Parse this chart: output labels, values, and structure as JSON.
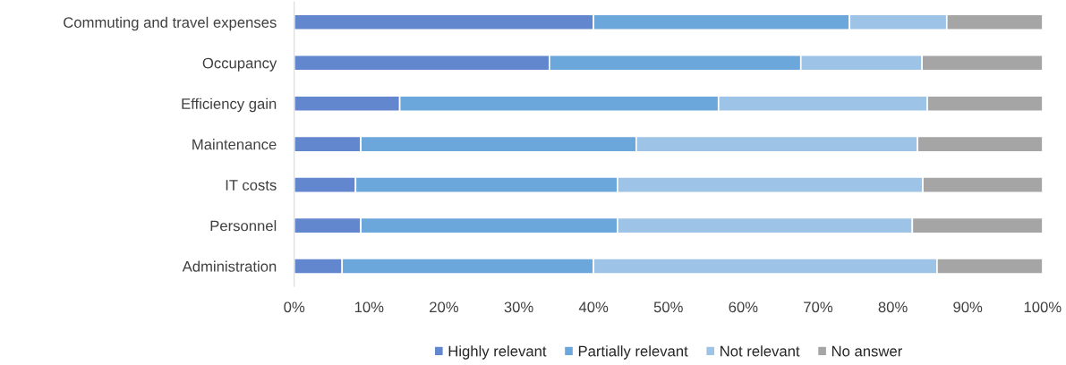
{
  "chart_data": {
    "type": "bar",
    "orientation": "horizontal",
    "stacked": true,
    "categories": [
      "Commuting and travel expenses",
      "Occupancy",
      "Efficiency gain",
      "Maintenance",
      "IT costs",
      "Personnel",
      "Administration"
    ],
    "series": [
      {
        "name": "Highly relevant",
        "color": "#6287cf",
        "values": [
          40.0,
          34.1,
          14.1,
          8.9,
          8.2,
          8.9,
          6.4
        ]
      },
      {
        "name": "Partially relevant",
        "color": "#6ca7db",
        "values": [
          34.2,
          33.6,
          42.6,
          36.8,
          35.0,
          34.3,
          33.6
        ]
      },
      {
        "name": "Not relevant",
        "color": "#9dc3e6",
        "values": [
          13.0,
          16.2,
          27.9,
          37.6,
          40.8,
          39.4,
          45.9
        ]
      },
      {
        "name": "No answer",
        "color": "#a5a5a5",
        "values": [
          12.8,
          16.1,
          15.4,
          16.7,
          16.0,
          17.4,
          14.1
        ]
      }
    ],
    "xlim": [
      0,
      100
    ],
    "xticks": [
      {
        "value": 0,
        "label": "0%"
      },
      {
        "value": 10,
        "label": "10%"
      },
      {
        "value": 20,
        "label": "20%"
      },
      {
        "value": 30,
        "label": "30%"
      },
      {
        "value": 40,
        "label": "40%"
      },
      {
        "value": 50,
        "label": "50%"
      },
      {
        "value": 60,
        "label": "60%"
      },
      {
        "value": 70,
        "label": "70%"
      },
      {
        "value": 80,
        "label": "80%"
      },
      {
        "value": 90,
        "label": "90%"
      },
      {
        "value": 100,
        "label": "100%"
      }
    ],
    "grid": false,
    "legend": "bottom"
  }
}
